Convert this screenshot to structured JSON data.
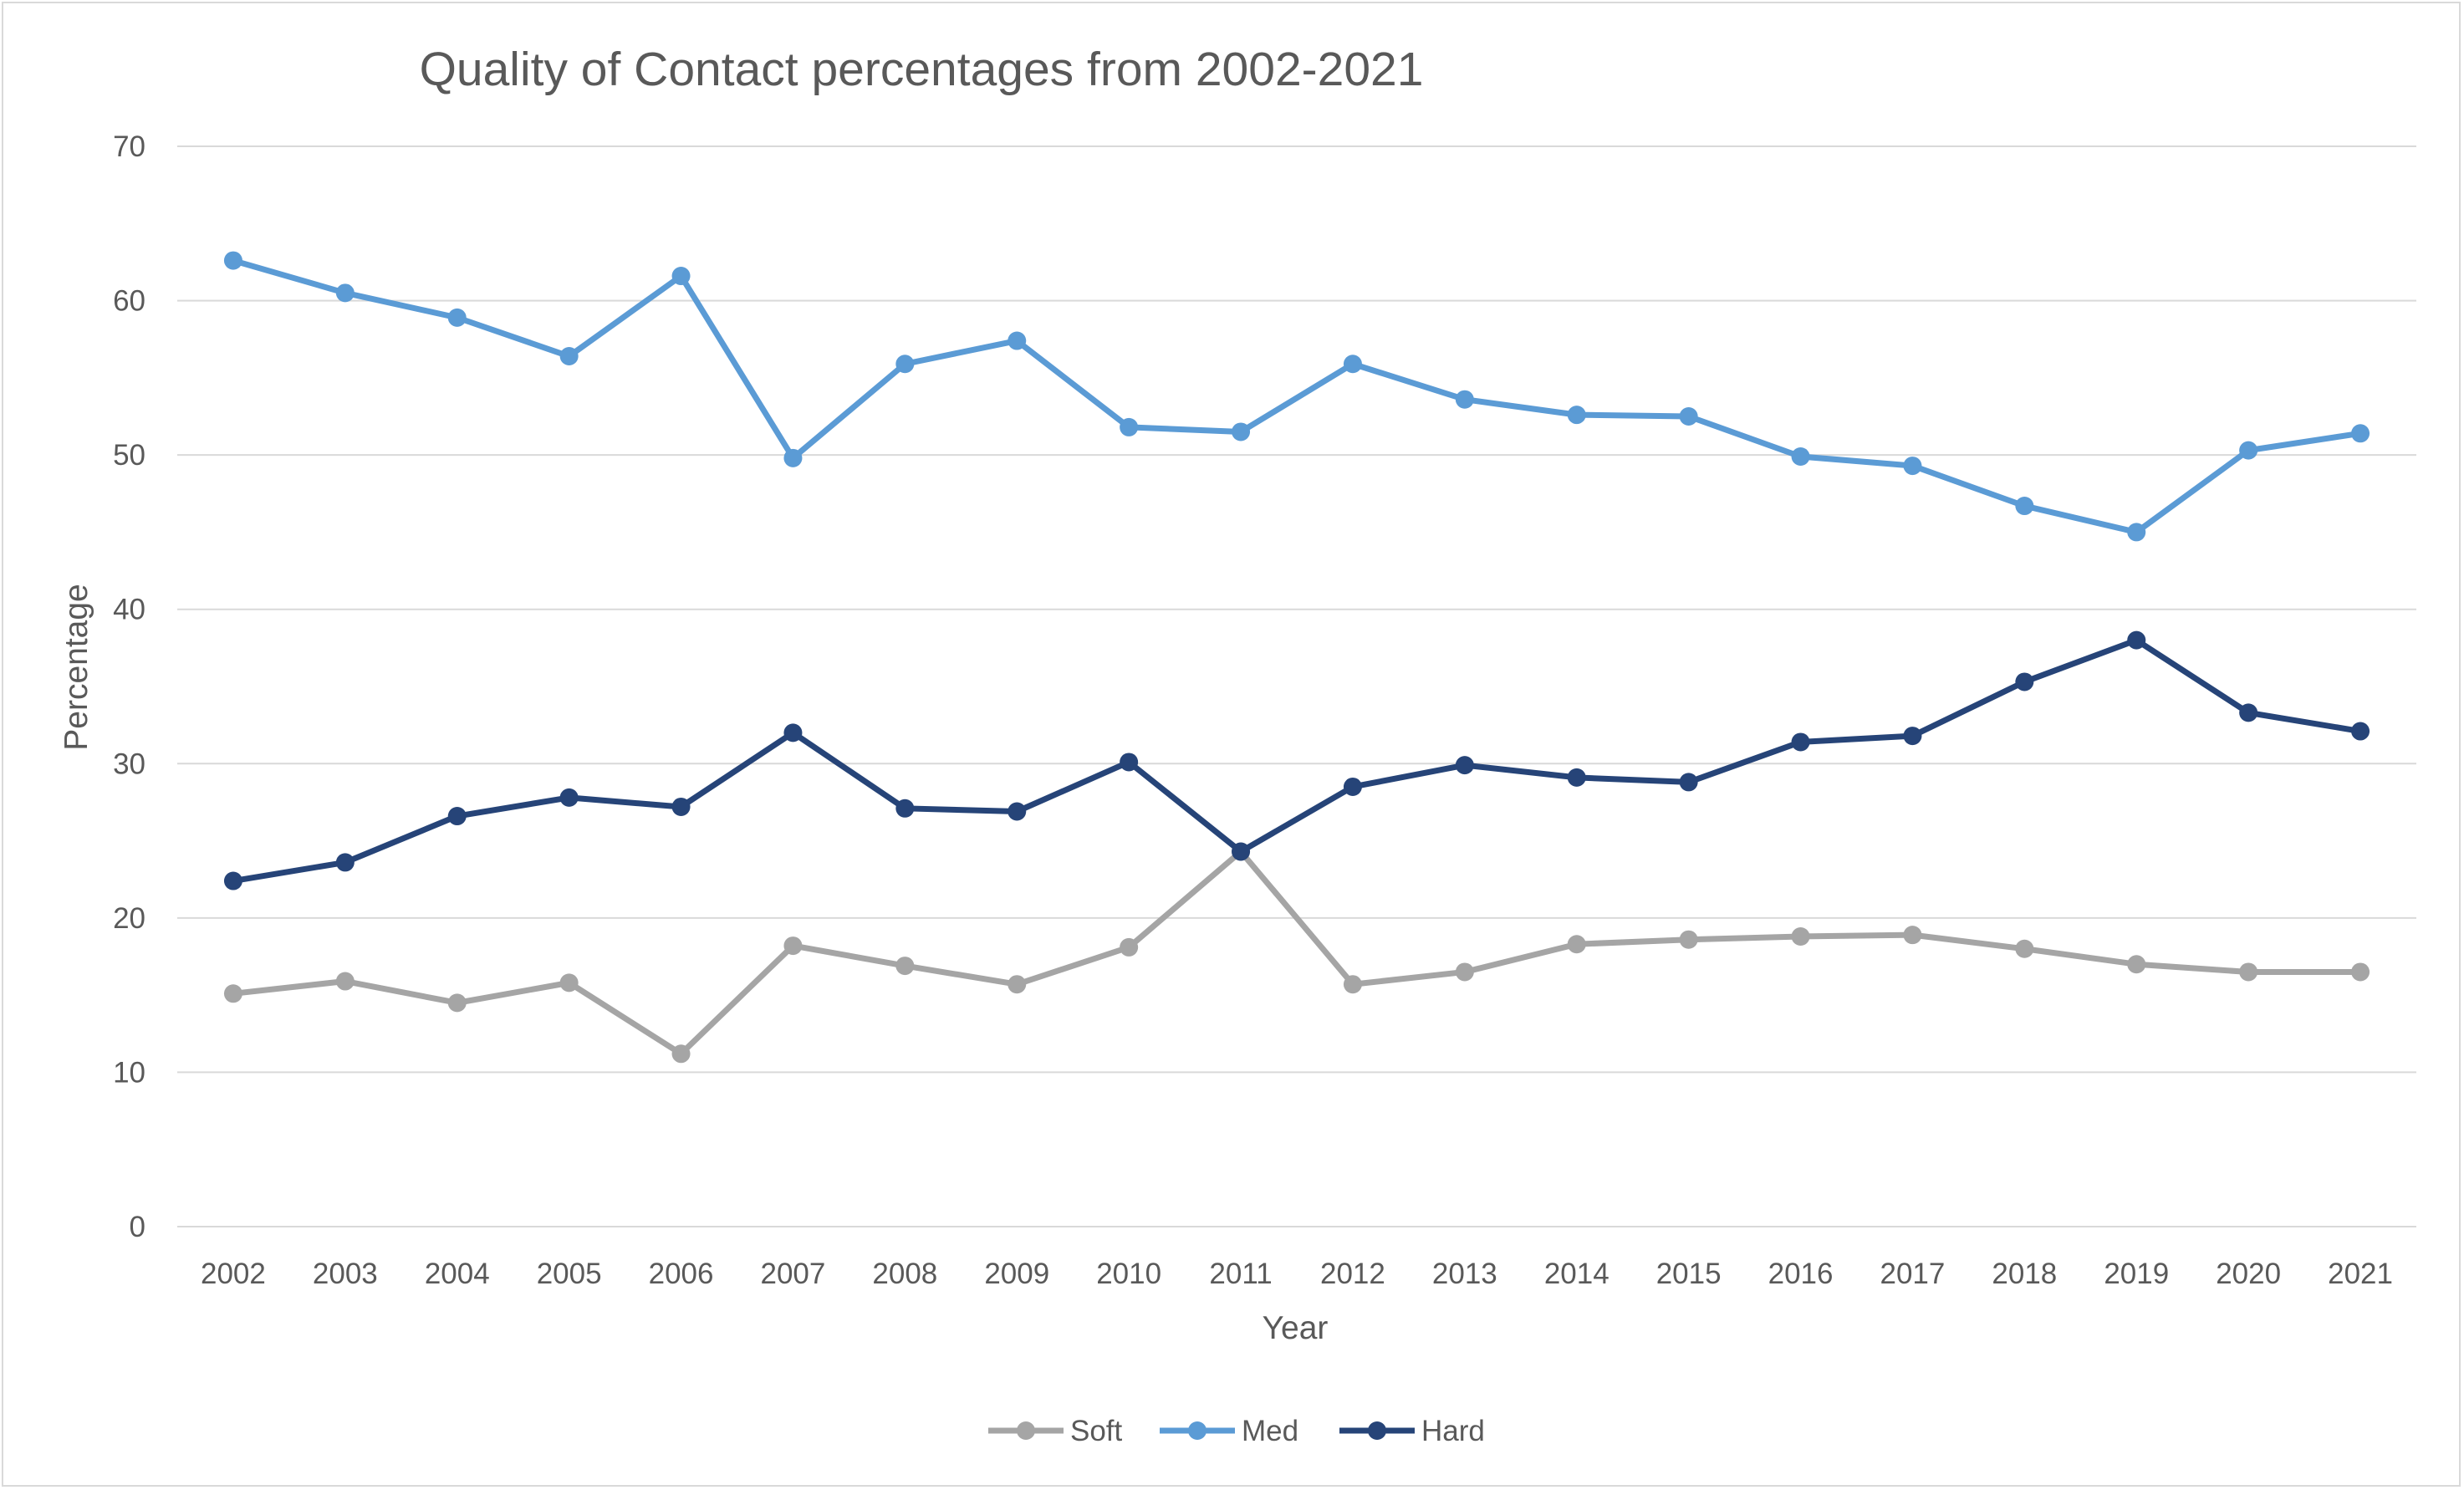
{
  "chart_data": {
    "type": "line",
    "title": "Quality of Contact percentages from 2002-2021",
    "xlabel": "Year",
    "ylabel": "Percentage",
    "ylim": [
      0,
      70
    ],
    "yticks": [
      0,
      10,
      20,
      30,
      40,
      50,
      60,
      70
    ],
    "grid": true,
    "legend_position": "bottom",
    "categories": [
      "2002",
      "2003",
      "2004",
      "2005",
      "2006",
      "2007",
      "2008",
      "2009",
      "2010",
      "2011",
      "2012",
      "2013",
      "2014",
      "2015",
      "2016",
      "2017",
      "2018",
      "2019",
      "2020",
      "2021"
    ],
    "series": [
      {
        "name": "Soft",
        "color": "#a5a5a5",
        "values": [
          15.1,
          15.9,
          14.5,
          15.8,
          11.2,
          18.2,
          16.9,
          15.7,
          18.1,
          24.3,
          15.7,
          16.5,
          18.3,
          18.6,
          18.8,
          18.9,
          18.0,
          17.0,
          16.5,
          16.5
        ]
      },
      {
        "name": "Med",
        "color": "#5b9bd5",
        "values": [
          62.6,
          60.5,
          58.9,
          56.4,
          61.6,
          49.8,
          55.9,
          57.4,
          51.8,
          51.5,
          55.9,
          53.6,
          52.6,
          52.5,
          49.9,
          49.3,
          46.7,
          45.0,
          50.3,
          51.4
        ]
      },
      {
        "name": "Hard",
        "color": "#264478",
        "values": [
          22.4,
          23.6,
          26.6,
          27.8,
          27.2,
          32.0,
          27.1,
          26.9,
          30.1,
          24.3,
          28.5,
          29.9,
          29.1,
          28.8,
          31.4,
          31.8,
          35.3,
          38.0,
          33.3,
          32.1
        ]
      }
    ]
  },
  "colors": {
    "gridline": "#d9d9d9",
    "text": "#595959",
    "border": "#d9d9d9"
  }
}
